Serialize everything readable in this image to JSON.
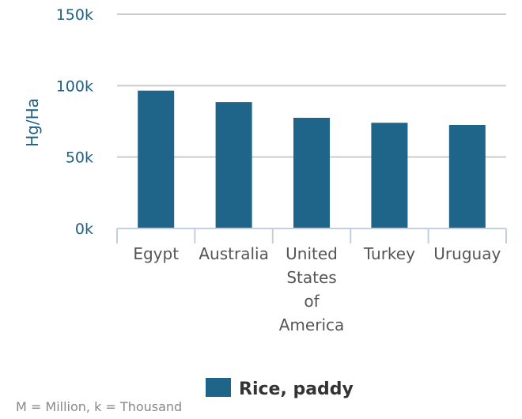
{
  "chart_data": {
    "type": "bar",
    "categories": [
      "Egypt",
      "Australia",
      "United States of America",
      "Turkey",
      "Uruguay"
    ],
    "category_lines": [
      [
        "Egypt"
      ],
      [
        "Australia"
      ],
      [
        "United",
        "States",
        "of",
        "America"
      ],
      [
        "Turkey"
      ],
      [
        "Uruguay"
      ]
    ],
    "series": [
      {
        "name": "Rice, paddy",
        "values": [
          96500,
          88500,
          77500,
          74000,
          72500
        ]
      }
    ],
    "ylabel": "Hg/Ha",
    "ylim": [
      0,
      150000
    ],
    "yticks": [
      0,
      50000,
      100000,
      150000
    ],
    "ytick_labels": [
      "0k",
      "50k",
      "100k",
      "150k"
    ],
    "grid": true,
    "legend_position": "bottom-center",
    "colors": {
      "bar": "#1f6489",
      "grid": "#cccccc",
      "axis": "#c0d0e0"
    }
  },
  "footnote": "M = Million, k = Thousand"
}
